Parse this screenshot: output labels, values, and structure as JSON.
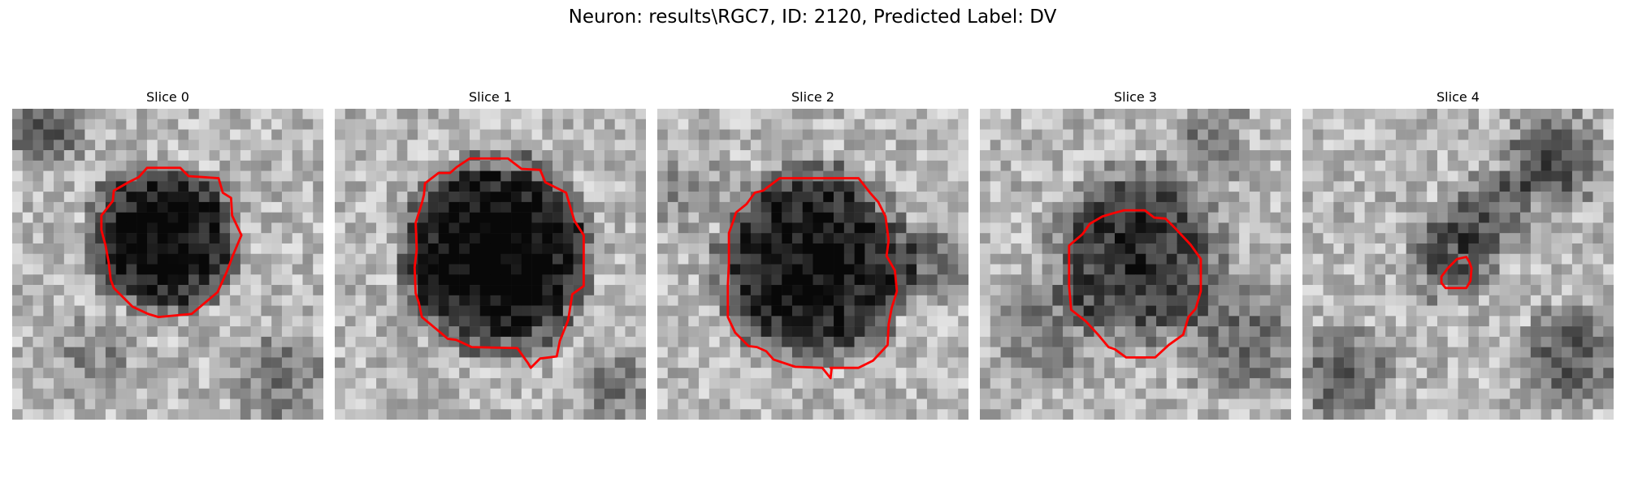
{
  "figure": {
    "title": "Neuron: results\\RGC7, ID: 2120, Predicted Label: DV",
    "contour_color": "#ff0000",
    "colormap": "grayscale"
  },
  "slices": [
    {
      "label": "Slice 0"
    },
    {
      "label": "Slice 1"
    },
    {
      "label": "Slice 2"
    },
    {
      "label": "Slice 3"
    },
    {
      "label": "Slice 4"
    }
  ]
}
